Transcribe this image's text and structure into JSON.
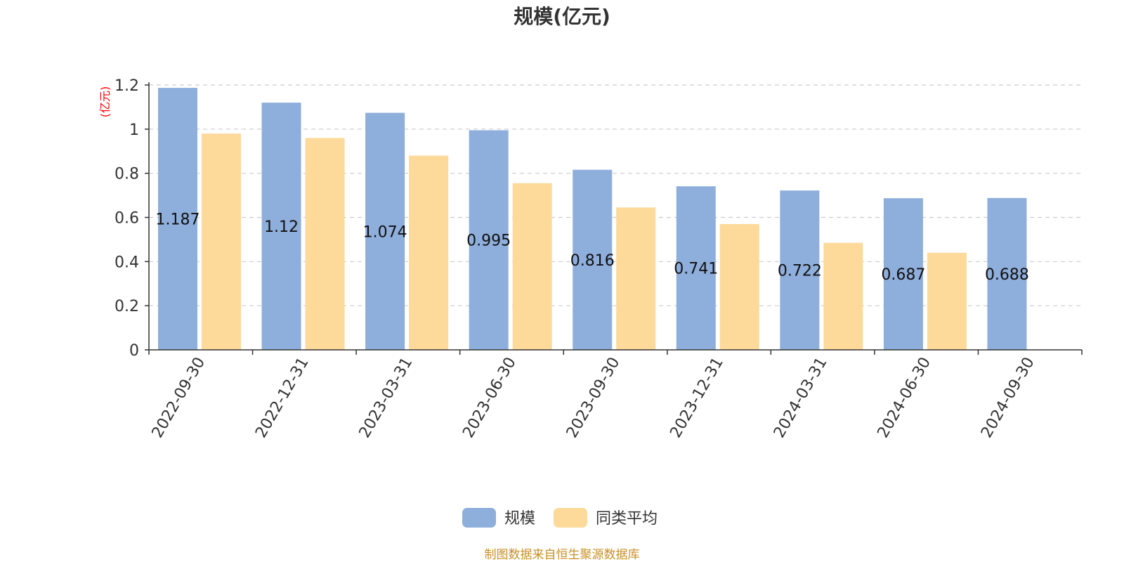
{
  "chart_data": {
    "type": "bar",
    "title": "规模(亿元)",
    "ylabel": "(亿元)",
    "xlabel": "",
    "categories": [
      "2022-09-30",
      "2022-12-31",
      "2023-03-31",
      "2023-06-30",
      "2023-09-30",
      "2023-12-31",
      "2024-03-31",
      "2024-06-30",
      "2024-09-30"
    ],
    "series": [
      {
        "name": "规模",
        "color": "#8eaedb",
        "values": [
          1.187,
          1.12,
          1.074,
          0.995,
          0.816,
          0.741,
          0.722,
          0.687,
          0.688
        ],
        "show_labels": true
      },
      {
        "name": "同类平均",
        "color": "#fdd99a",
        "values": [
          0.98,
          0.96,
          0.88,
          0.755,
          0.645,
          0.57,
          0.485,
          0.44,
          null
        ],
        "show_labels": false
      }
    ],
    "ylim": [
      0,
      1.2
    ],
    "yticks": [
      "0",
      "0.2",
      "0.4",
      "0.6",
      "0.8",
      "1",
      "1.2"
    ],
    "grid": true,
    "legend_position": "bottom-center"
  },
  "source": "制图数据来自恒生聚源数据库",
  "colors": {
    "axis": "#333333",
    "grid": "#cccccc",
    "unit": "#ff0000",
    "source": "#c8902a"
  }
}
